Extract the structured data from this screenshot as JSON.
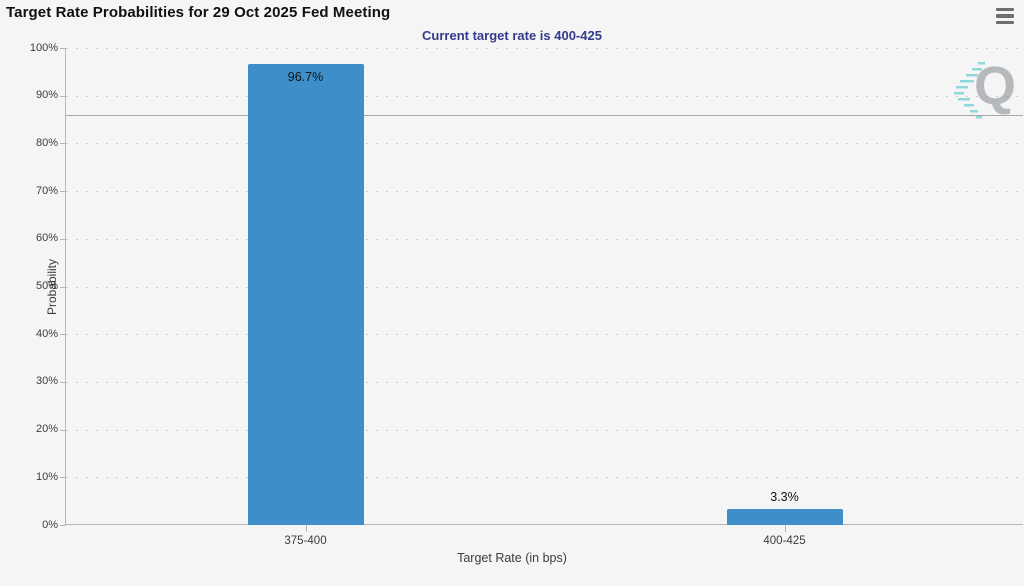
{
  "header": {
    "title": "Target Rate Probabilities for 29 Oct 2025 Fed Meeting",
    "subtitle": "Current target rate is 400-425"
  },
  "icons": {
    "menu": "hamburger-menu-icon",
    "watermark": "q-logo-watermark"
  },
  "watermark": {
    "letter": "Q"
  },
  "colors": {
    "background": "#f5f5f6",
    "bar": "#3d8ec9",
    "subtitle": "#333b8a",
    "axis": "#b7b7ba",
    "grid_dots": "#cdcdd2",
    "reference_line": "#a6a6aa",
    "watermark_teal": "#3cc0c9"
  },
  "chart_data": {
    "type": "bar",
    "title": "Target Rate Probabilities for 29 Oct 2025 Fed Meeting",
    "subtitle": "Current target rate is 400-425",
    "categories": [
      "375-400",
      "400-425"
    ],
    "values": [
      96.7,
      3.3
    ],
    "value_labels": [
      "96.7%",
      "3.3%"
    ],
    "xlabel": "Target Rate (in bps)",
    "ylabel": "Probability",
    "ylim": [
      0,
      100
    ],
    "ytick_step": 10,
    "ytick_labels": [
      "0%",
      "10%",
      "20%",
      "30%",
      "40%",
      "50%",
      "60%",
      "70%",
      "80%",
      "90%",
      "100%"
    ],
    "grid": "dotted horizontal gridlines at each 10%",
    "legend": "none",
    "reference_line_y": 86
  }
}
